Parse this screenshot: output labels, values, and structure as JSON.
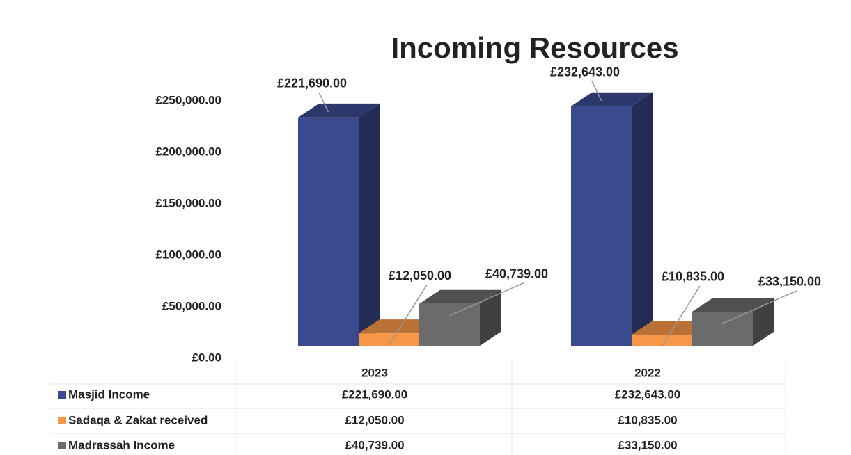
{
  "chart_data": {
    "type": "bar",
    "title": "Incoming Resources",
    "categories": [
      "2023",
      "2022"
    ],
    "series": [
      {
        "name": "Masjid Income",
        "color": "#3b4a8e",
        "values": [
          221690,
          232643
        ],
        "value_labels": [
          "£221,690.00",
          "£232,643.00"
        ]
      },
      {
        "name": "Sadaqa & Zakat received",
        "color": "#f79646",
        "values": [
          12050,
          10835
        ],
        "value_labels": [
          "£12,050.00",
          "£10,835.00"
        ]
      },
      {
        "name": "Madrassah Income",
        "color": "#6b6b6b",
        "values": [
          40739,
          33150
        ],
        "value_labels": [
          "£40,739.00",
          "£33,150.00"
        ]
      }
    ],
    "ylim": [
      0,
      250000
    ],
    "yticks": [
      {
        "value": 0,
        "label": "£0.00"
      },
      {
        "value": 50000,
        "label": "£50,000.00"
      },
      {
        "value": 100000,
        "label": "£100,000.00"
      },
      {
        "value": 150000,
        "label": "£150,000.00"
      },
      {
        "value": 200000,
        "label": "£200,000.00"
      },
      {
        "value": 250000,
        "label": "£250,000.00"
      }
    ],
    "grid": false
  }
}
